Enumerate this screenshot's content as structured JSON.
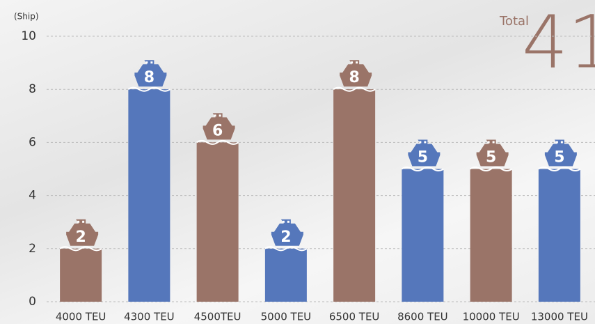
{
  "chart_data": {
    "type": "bar",
    "y_unit_label": "(Ship)",
    "total": {
      "label": "Total",
      "value": 41
    },
    "categories": [
      "4000 TEU",
      "4300 TEU",
      "4500TEU",
      "5000 TEU",
      "6500 TEU",
      "8600 TEU",
      "10000 TEU",
      "13000 TEU"
    ],
    "values": [
      2,
      8,
      6,
      2,
      8,
      5,
      5,
      5
    ],
    "colors": [
      "#9a7468",
      "#5577bb",
      "#9a7468",
      "#5577bb",
      "#9a7468",
      "#5577bb",
      "#9a7468",
      "#5577bb"
    ],
    "ylim": [
      0,
      10
    ],
    "yticks": [
      0,
      2,
      4,
      6,
      8,
      10
    ],
    "grid": true
  }
}
